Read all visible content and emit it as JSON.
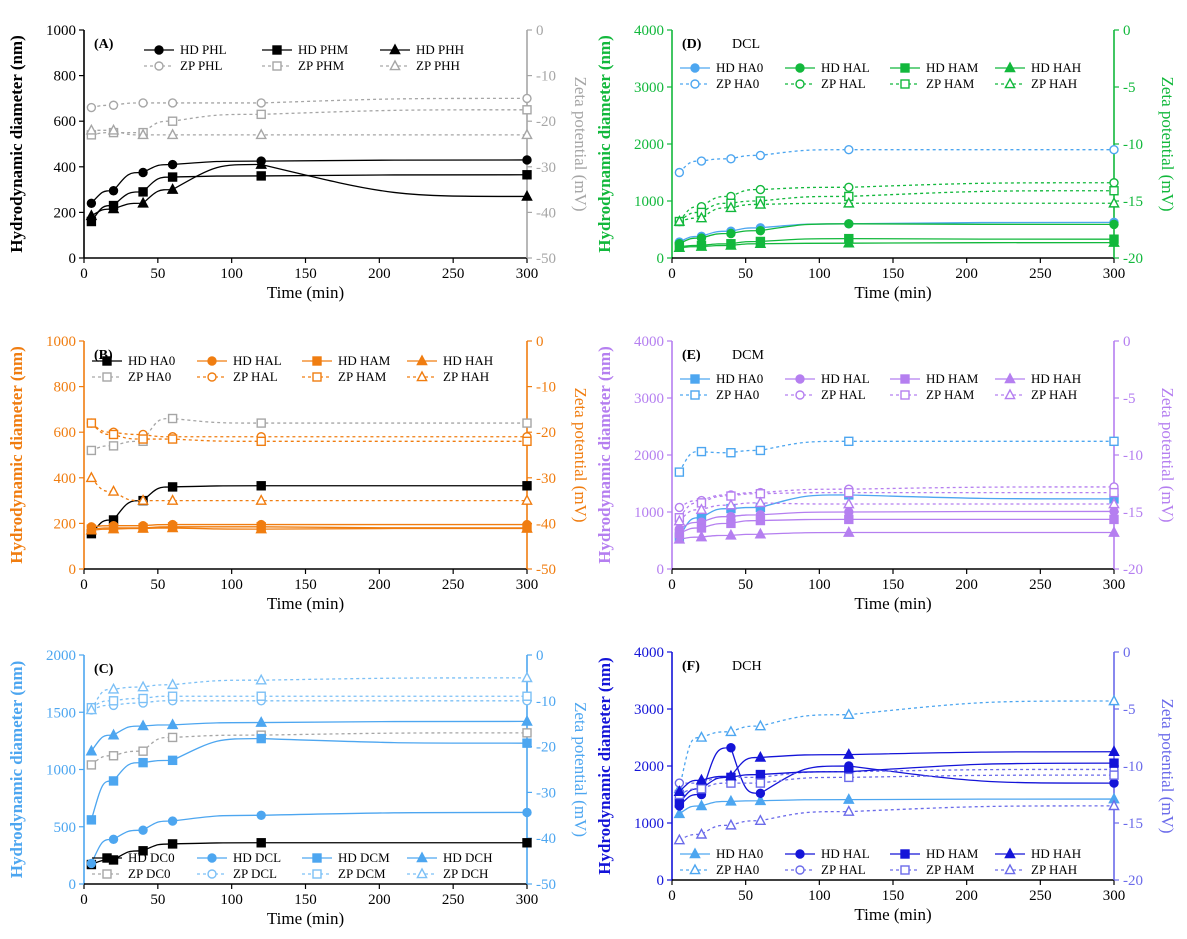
{
  "chart_data": [
    {
      "id": "A",
      "type": "scatter",
      "panel_label": "(A)",
      "panel_title": "",
      "xlabel": "Time (min)",
      "xlim": [
        0,
        300
      ],
      "xticks": [
        0,
        50,
        100,
        150,
        200,
        250,
        300
      ],
      "ylabel": "Hydrodynamic diameter (nm)",
      "ylim": [
        0,
        1000
      ],
      "yticks": [
        0,
        200,
        400,
        600,
        800,
        1000
      ],
      "y2label": "Zeta potential (mV)",
      "y2lim": [
        -50,
        0
      ],
      "y2ticks": [
        0,
        -10,
        -20,
        -30,
        -40,
        -50
      ],
      "hd_color": "#000000",
      "zp_color": "#a6a6a6",
      "x": [
        5,
        20,
        40,
        60,
        120,
        300
      ],
      "series": [
        {
          "name": "HD PHL",
          "axis": "left",
          "marker": "circle",
          "color": "#000000",
          "dashed": false,
          "values": [
            240,
            295,
            375,
            410,
            425,
            430
          ]
        },
        {
          "name": "ZP PHL",
          "axis": "right",
          "marker": "circle",
          "color": "#a6a6a6",
          "dashed": true,
          "values": [
            -17,
            -16.5,
            -16,
            -16,
            -16,
            -15
          ]
        },
        {
          "name": "HD PHM",
          "axis": "left",
          "marker": "square",
          "color": "#000000",
          "dashed": false,
          "values": [
            160,
            230,
            290,
            355,
            360,
            365
          ]
        },
        {
          "name": "ZP PHM",
          "axis": "right",
          "marker": "square",
          "color": "#a6a6a6",
          "dashed": true,
          "values": [
            -23,
            -22.5,
            -22.5,
            -20,
            -18.5,
            -17.5
          ]
        },
        {
          "name": "HD PHH",
          "axis": "left",
          "marker": "triangle",
          "color": "#000000",
          "dashed": false,
          "values": [
            185,
            215,
            240,
            300,
            410,
            270
          ]
        },
        {
          "name": "ZP PHH",
          "axis": "right",
          "marker": "triangle",
          "color": "#a6a6a6",
          "dashed": true,
          "values": [
            -22,
            -22,
            -23,
            -23,
            -23,
            -23
          ]
        }
      ]
    },
    {
      "id": "B",
      "type": "scatter",
      "panel_label": "(B)",
      "panel_title": "",
      "xlabel": "Time (min)",
      "xlim": [
        0,
        300
      ],
      "xticks": [
        0,
        50,
        100,
        150,
        200,
        250,
        300
      ],
      "ylabel": "Hydrodynamic diameter (nm)",
      "ylim": [
        0,
        1000
      ],
      "yticks": [
        0,
        200,
        400,
        600,
        800,
        1000
      ],
      "y2label": "Zeta potential (mV)",
      "y2lim": [
        -50,
        0
      ],
      "y2ticks": [
        0,
        -10,
        -20,
        -30,
        -40,
        -50
      ],
      "hd_color": "#f07d10",
      "zp_color": "#f07d10",
      "x": [
        5,
        20,
        40,
        60,
        120,
        300
      ],
      "series": [
        {
          "name": "HD HA0",
          "axis": "left",
          "marker": "square",
          "color": "#000000",
          "dashed": false,
          "values": [
            155,
            215,
            300,
            360,
            365,
            365
          ]
        },
        {
          "name": "ZP HA0",
          "axis": "right",
          "marker": "square",
          "color": "#a6a6a6",
          "dashed": true,
          "values": [
            -24,
            -23,
            -22,
            -17,
            -18,
            -18
          ]
        },
        {
          "name": "HD HAL",
          "axis": "left",
          "marker": "circle",
          "color": "#f07d10",
          "dashed": false,
          "values": [
            185,
            190,
            190,
            195,
            195,
            195
          ]
        },
        {
          "name": "ZP HAL",
          "axis": "right",
          "marker": "circle",
          "color": "#f07d10",
          "dashed": true,
          "values": [
            -18,
            -20,
            -20.5,
            -21,
            -21,
            -21
          ]
        },
        {
          "name": "HD HAM",
          "axis": "left",
          "marker": "square",
          "color": "#f07d10",
          "dashed": false,
          "values": [
            175,
            180,
            180,
            185,
            185,
            180
          ]
        },
        {
          "name": "ZP HAM",
          "axis": "right",
          "marker": "square",
          "color": "#f07d10",
          "dashed": true,
          "values": [
            -18,
            -20.5,
            -21.5,
            -21.5,
            -22,
            -22
          ]
        },
        {
          "name": "HD HAH",
          "axis": "left",
          "marker": "triangle",
          "color": "#f07d10",
          "dashed": false,
          "values": [
            170,
            175,
            178,
            180,
            175,
            178
          ]
        },
        {
          "name": "ZP HAH",
          "axis": "right",
          "marker": "triangle",
          "color": "#f07d10",
          "dashed": true,
          "values": [
            -30,
            -33,
            -35,
            -35,
            -35,
            -35
          ]
        }
      ]
    },
    {
      "id": "C",
      "type": "scatter",
      "panel_label": "(C)",
      "panel_title": "",
      "xlabel": "Time (min)",
      "xlim": [
        0,
        300
      ],
      "xticks": [
        0,
        50,
        100,
        150,
        200,
        250,
        300
      ],
      "ylabel": "Hydrodynamic diameter (nm)",
      "ylim": [
        0,
        2000
      ],
      "yticks": [
        0,
        500,
        1000,
        1500,
        2000
      ],
      "y2label": "Zeta potential (mV)",
      "y2lim": [
        -50,
        0
      ],
      "y2ticks": [
        0,
        -10,
        -20,
        -30,
        -40,
        -50
      ],
      "hd_color": "#4da6f0",
      "zp_color": "#4da6f0",
      "x": [
        5,
        20,
        40,
        60,
        120,
        300
      ],
      "series": [
        {
          "name": "HD DC0",
          "axis": "left",
          "marker": "square",
          "color": "#000000",
          "dashed": false,
          "values": [
            170,
            210,
            290,
            350,
            360,
            360
          ]
        },
        {
          "name": "ZP DC0",
          "axis": "right",
          "marker": "square",
          "color": "#a6a6a6",
          "dashed": true,
          "values": [
            -24,
            -22,
            -21,
            -18,
            -17.5,
            -17
          ]
        },
        {
          "name": "HD DCL",
          "axis": "left",
          "marker": "circle",
          "color": "#4da6f0",
          "dashed": false,
          "values": [
            180,
            390,
            470,
            550,
            600,
            625
          ]
        },
        {
          "name": "ZP DCL",
          "axis": "right",
          "marker": "circle",
          "color": "#7cc0f6",
          "dashed": true,
          "values": [
            -12,
            -11,
            -10.5,
            -10,
            -10,
            -10
          ]
        },
        {
          "name": "HD DCM",
          "axis": "left",
          "marker": "square",
          "color": "#4da6f0",
          "dashed": false,
          "values": [
            560,
            900,
            1060,
            1080,
            1270,
            1230
          ]
        },
        {
          "name": "ZP DCM",
          "axis": "right",
          "marker": "square",
          "color": "#7cc0f6",
          "dashed": true,
          "values": [
            -11.5,
            -10,
            -9.5,
            -9,
            -9,
            -9
          ]
        },
        {
          "name": "HD DCH",
          "axis": "left",
          "marker": "triangle",
          "color": "#4da6f0",
          "dashed": false,
          "values": [
            1160,
            1300,
            1380,
            1390,
            1410,
            1420
          ]
        },
        {
          "name": "ZP DCH",
          "axis": "right",
          "marker": "triangle",
          "color": "#7cc0f6",
          "dashed": true,
          "values": [
            -12,
            -7.5,
            -7,
            -6.5,
            -5.5,
            -5
          ]
        }
      ]
    },
    {
      "id": "D",
      "type": "scatter",
      "panel_label": "(D)",
      "panel_title": "DCL",
      "xlabel": "Time (min)",
      "xlim": [
        0,
        300
      ],
      "xticks": [
        0,
        50,
        100,
        150,
        200,
        250,
        300
      ],
      "ylabel": "Hydrodynamic diameter (nm)",
      "ylim": [
        0,
        4000
      ],
      "yticks": [
        0,
        1000,
        2000,
        3000,
        4000
      ],
      "y2label": "Zeta potential (mV)",
      "y2lim": [
        -20,
        0
      ],
      "y2ticks": [
        0,
        -5,
        -10,
        -15,
        -20
      ],
      "hd_color": "#12b83c",
      "zp_color": "#12b83c",
      "x": [
        5,
        20,
        40,
        60,
        120,
        300
      ],
      "series": [
        {
          "name": "HD HA0",
          "axis": "left",
          "marker": "circle",
          "color": "#4da6f0",
          "dashed": false,
          "values": [
            280,
            380,
            470,
            530,
            600,
            625
          ]
        },
        {
          "name": "ZP HA0",
          "axis": "right",
          "marker": "circle",
          "color": "#4da6f0",
          "dashed": true,
          "values": [
            -12.5,
            -11.5,
            -11.3,
            -11,
            -10.5,
            -10.5
          ]
        },
        {
          "name": "HD HAL",
          "axis": "left",
          "marker": "circle",
          "color": "#12b83c",
          "dashed": false,
          "values": [
            250,
            350,
            430,
            480,
            600,
            590
          ]
        },
        {
          "name": "ZP HAL",
          "axis": "right",
          "marker": "circle",
          "color": "#12b83c",
          "dashed": true,
          "values": [
            -16.8,
            -15.5,
            -14.6,
            -14,
            -13.8,
            -13.4
          ]
        },
        {
          "name": "HD HAM",
          "axis": "left",
          "marker": "square",
          "color": "#12b83c",
          "dashed": false,
          "values": [
            200,
            220,
            250,
            290,
            340,
            330
          ]
        },
        {
          "name": "ZP HAM",
          "axis": "right",
          "marker": "square",
          "color": "#12b83c",
          "dashed": true,
          "values": [
            -16.8,
            -16,
            -15.2,
            -15,
            -14.6,
            -14.1
          ]
        },
        {
          "name": "HD HAH",
          "axis": "left",
          "marker": "triangle",
          "color": "#12b83c",
          "dashed": false,
          "values": [
            180,
            200,
            220,
            250,
            260,
            270
          ]
        },
        {
          "name": "ZP HAH",
          "axis": "right",
          "marker": "triangle",
          "color": "#12b83c",
          "dashed": true,
          "values": [
            -16.8,
            -16.5,
            -15.6,
            -15.3,
            -15.2,
            -15.2
          ]
        }
      ]
    },
    {
      "id": "E",
      "type": "scatter",
      "panel_label": "(E)",
      "panel_title": "DCM",
      "xlabel": "Time (min)",
      "xlim": [
        0,
        300
      ],
      "xticks": [
        0,
        50,
        100,
        150,
        200,
        250,
        300
      ],
      "ylabel": "Hydrodynamic diameter (nm)",
      "ylim": [
        0,
        4000
      ],
      "yticks": [
        0,
        1000,
        2000,
        3000,
        4000
      ],
      "y2label": "Zeta potential (mV)",
      "y2lim": [
        -20,
        0
      ],
      "y2ticks": [
        0,
        -5,
        -10,
        -15,
        -20
      ],
      "hd_color": "#b57ff0",
      "zp_color": "#b57ff0",
      "x": [
        5,
        20,
        40,
        60,
        120,
        300
      ],
      "series": [
        {
          "name": "HD HA0",
          "axis": "left",
          "marker": "square",
          "color": "#4da6f0",
          "dashed": false,
          "values": [
            560,
            900,
            1060,
            1080,
            1300,
            1230
          ]
        },
        {
          "name": "ZP HA0",
          "axis": "right",
          "marker": "square",
          "color": "#4da6f0",
          "dashed": true,
          "values": [
            -11.5,
            -9.7,
            -9.8,
            -9.6,
            -8.8,
            -8.8
          ]
        },
        {
          "name": "HD HAL",
          "axis": "left",
          "marker": "circle",
          "color": "#b57ff0",
          "dashed": false,
          "values": [
            700,
            820,
            920,
            950,
            1000,
            1010
          ]
        },
        {
          "name": "ZP HAL",
          "axis": "right",
          "marker": "circle",
          "color": "#b57ff0",
          "dashed": true,
          "values": [
            -14.6,
            -14,
            -13.5,
            -13.3,
            -13,
            -12.8
          ]
        },
        {
          "name": "HD HAM",
          "axis": "left",
          "marker": "square",
          "color": "#b57ff0",
          "dashed": false,
          "values": [
            620,
            720,
            800,
            850,
            870,
            870
          ]
        },
        {
          "name": "ZP HAM",
          "axis": "right",
          "marker": "square",
          "color": "#b57ff0",
          "dashed": true,
          "values": [
            -15.5,
            -14.2,
            -13.6,
            -13.4,
            -13.3,
            -13.3
          ]
        },
        {
          "name": "HD HAH",
          "axis": "left",
          "marker": "triangle",
          "color": "#b57ff0",
          "dashed": false,
          "values": [
            520,
            560,
            590,
            610,
            640,
            640
          ]
        },
        {
          "name": "ZP HAH",
          "axis": "right",
          "marker": "triangle",
          "color": "#b57ff0",
          "dashed": true,
          "values": [
            -15.8,
            -14.8,
            -14.4,
            -14.2,
            -14.3,
            -14.3
          ]
        }
      ]
    },
    {
      "id": "F",
      "type": "scatter",
      "panel_label": "(F)",
      "panel_title": "DCH",
      "xlabel": "Time (min)",
      "xlim": [
        0,
        300
      ],
      "xticks": [
        0,
        50,
        100,
        150,
        200,
        250,
        300
      ],
      "ylabel": "Hydrodynamic diameter (nm)",
      "ylim": [
        0,
        4000
      ],
      "yticks": [
        0,
        1000,
        2000,
        3000,
        4000
      ],
      "y2label": "Zeta potential (mV)",
      "y2lim": [
        -20,
        0
      ],
      "y2ticks": [
        0,
        -5,
        -10,
        -15,
        -20
      ],
      "hd_color": "#1414d8",
      "zp_color": "#6b6bea",
      "x": [
        5,
        20,
        40,
        60,
        120,
        300
      ],
      "series": [
        {
          "name": "HD HA0",
          "axis": "left",
          "marker": "triangle",
          "color": "#4da6f0",
          "dashed": false,
          "values": [
            1160,
            1300,
            1380,
            1390,
            1410,
            1420
          ]
        },
        {
          "name": "ZP HA0",
          "axis": "right",
          "marker": "triangle",
          "color": "#4da6f0",
          "dashed": true,
          "values": [
            -12,
            -7.5,
            -7,
            -6.5,
            -5.5,
            -4.3
          ]
        },
        {
          "name": "HD HAL",
          "axis": "left",
          "marker": "circle",
          "color": "#1414d8",
          "dashed": false,
          "values": [
            1300,
            1500,
            2320,
            1520,
            2000,
            1700
          ]
        },
        {
          "name": "ZP HAL",
          "axis": "right",
          "marker": "circle",
          "color": "#6b6bea",
          "dashed": true,
          "values": [
            -11.5,
            -11.5,
            -11,
            -11,
            -10.5,
            -10.3
          ]
        },
        {
          "name": "HD HAM",
          "axis": "left",
          "marker": "square",
          "color": "#1414d8",
          "dashed": false,
          "values": [
            1350,
            1600,
            1800,
            1850,
            1900,
            2050
          ]
        },
        {
          "name": "ZP HAM",
          "axis": "right",
          "marker": "square",
          "color": "#6b6bea",
          "dashed": true,
          "values": [
            -12.5,
            -12,
            -11.5,
            -11.5,
            -11,
            -10.8
          ]
        },
        {
          "name": "HD HAH",
          "axis": "left",
          "marker": "triangle",
          "color": "#1414d8",
          "dashed": false,
          "values": [
            1550,
            1750,
            1820,
            2150,
            2200,
            2250
          ]
        },
        {
          "name": "ZP HAH",
          "axis": "right",
          "marker": "triangle",
          "color": "#6b6bea",
          "dashed": true,
          "values": [
            -16.5,
            -16,
            -15.2,
            -14.8,
            -14,
            -13.5
          ]
        }
      ]
    }
  ]
}
